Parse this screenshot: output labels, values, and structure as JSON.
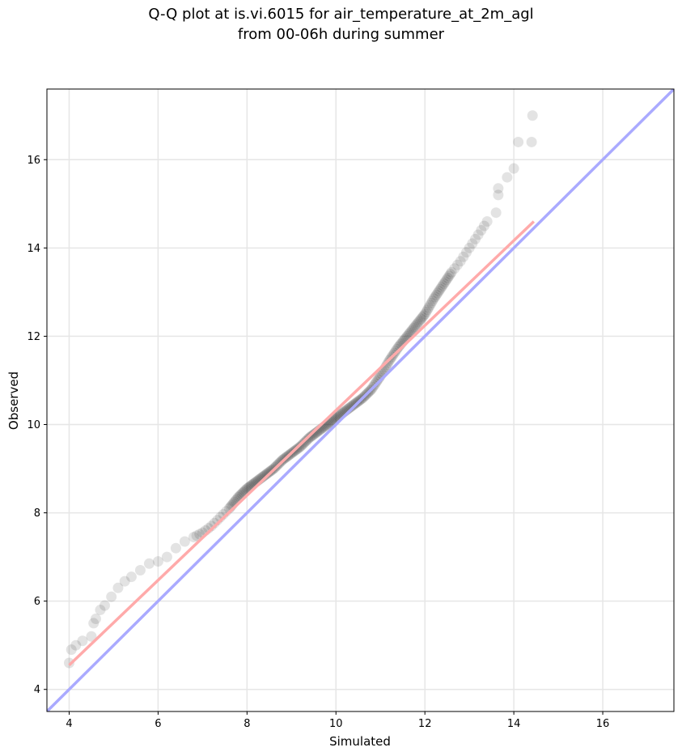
{
  "chart_data": {
    "type": "scatter",
    "title_line1": "Q-Q plot at is.vi.6015 for air_temperature_at_2m_agl",
    "title_line2": "from 00-06h during summer",
    "xlabel": "Simulated",
    "ylabel": "Observed",
    "xlim": [
      3.5,
      17.6
    ],
    "ylim": [
      3.5,
      17.6
    ],
    "xticks": [
      4,
      6,
      8,
      10,
      12,
      14,
      16
    ],
    "yticks": [
      4,
      6,
      8,
      10,
      12,
      14,
      16
    ],
    "grid": true,
    "reference_line": {
      "name": "1:1",
      "color": "#aaaaff",
      "from": [
        3.5,
        3.5
      ],
      "to": [
        17.6,
        17.6
      ]
    },
    "fit_line": {
      "color": "#ffaaaa",
      "from": [
        4.0,
        4.55
      ],
      "to": [
        14.45,
        14.6
      ]
    },
    "points": [
      [
        4.0,
        4.6
      ],
      [
        4.05,
        4.9
      ],
      [
        4.15,
        5.0
      ],
      [
        4.3,
        5.1
      ],
      [
        4.5,
        5.2
      ],
      [
        4.55,
        5.5
      ],
      [
        4.6,
        5.6
      ],
      [
        4.7,
        5.8
      ],
      [
        4.8,
        5.9
      ],
      [
        4.95,
        6.1
      ],
      [
        5.1,
        6.3
      ],
      [
        5.25,
        6.45
      ],
      [
        5.4,
        6.55
      ],
      [
        5.6,
        6.7
      ],
      [
        5.8,
        6.85
      ],
      [
        6.0,
        6.9
      ],
      [
        6.2,
        7.0
      ],
      [
        6.4,
        7.2
      ],
      [
        6.6,
        7.35
      ],
      [
        6.8,
        7.45
      ],
      [
        7.0,
        7.55
      ],
      [
        7.2,
        7.7
      ],
      [
        7.4,
        7.9
      ],
      [
        7.6,
        8.1
      ],
      [
        7.8,
        8.35
      ],
      [
        8.0,
        8.55
      ],
      [
        8.2,
        8.7
      ],
      [
        8.4,
        8.85
      ],
      [
        8.6,
        9.0
      ],
      [
        8.8,
        9.2
      ],
      [
        9.0,
        9.35
      ],
      [
        9.2,
        9.5
      ],
      [
        9.4,
        9.7
      ],
      [
        9.6,
        9.85
      ],
      [
        9.8,
        10.0
      ],
      [
        10.0,
        10.15
      ],
      [
        10.2,
        10.3
      ],
      [
        10.4,
        10.45
      ],
      [
        10.6,
        10.6
      ],
      [
        10.8,
        10.8
      ],
      [
        11.0,
        11.1
      ],
      [
        11.2,
        11.45
      ],
      [
        11.4,
        11.75
      ],
      [
        11.6,
        12.0
      ],
      [
        11.8,
        12.25
      ],
      [
        12.0,
        12.5
      ],
      [
        12.2,
        12.85
      ],
      [
        12.4,
        13.15
      ],
      [
        12.6,
        13.45
      ],
      [
        12.8,
        13.7
      ],
      [
        13.0,
        14.0
      ],
      [
        13.2,
        14.3
      ],
      [
        13.4,
        14.6
      ],
      [
        13.6,
        14.8
      ],
      [
        13.65,
        15.2
      ],
      [
        13.65,
        15.35
      ],
      [
        13.85,
        15.6
      ],
      [
        14.0,
        15.8
      ],
      [
        14.1,
        16.4
      ],
      [
        14.4,
        16.4
      ],
      [
        14.42,
        17.0
      ]
    ]
  }
}
